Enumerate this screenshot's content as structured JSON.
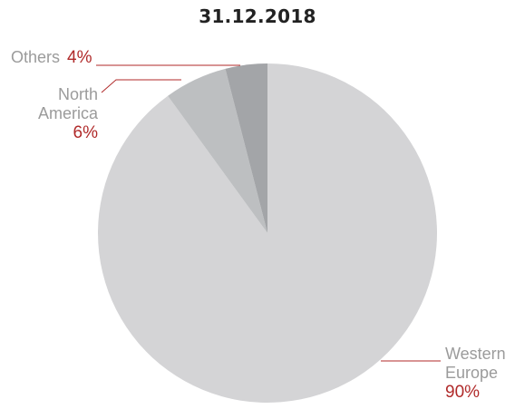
{
  "chart_data": {
    "type": "pie",
    "title": "31.12.2018",
    "slices": [
      {
        "name": "Western Europe",
        "label_lines": [
          "Western",
          "Europe"
        ],
        "value": 90,
        "value_label": "90%",
        "color": "#d4d4d6"
      },
      {
        "name": "North America",
        "label_lines": [
          "North",
          "America"
        ],
        "value": 6,
        "value_label": "6%",
        "color": "#bdbfc1"
      },
      {
        "name": "Others",
        "label_lines": [
          "Others"
        ],
        "value": 4,
        "value_label": "4%",
        "color": "#a3a5a8"
      }
    ],
    "legend": "none",
    "label_color": "#9b9b9b",
    "value_color": "#b02a2a"
  }
}
